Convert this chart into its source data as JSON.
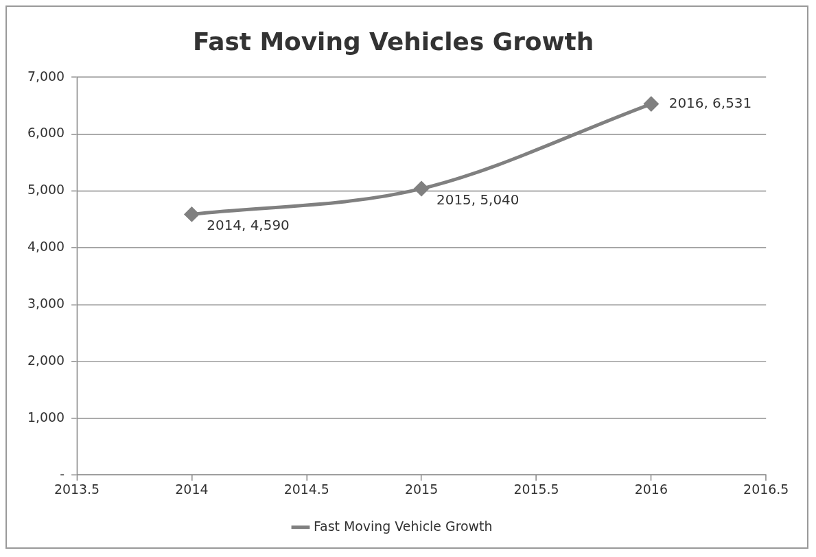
{
  "chart_data": {
    "type": "line",
    "title": "Fast Moving Vehicles Growth",
    "x": [
      2014,
      2015,
      2016
    ],
    "series": [
      {
        "name": "Fast Moving Vehicle Growth",
        "color": "#808080",
        "values": [
          4590,
          5040,
          6531
        ],
        "value_labels": [
          "2014, 4,590",
          "2015, 5,040",
          "2016, 6,531"
        ]
      }
    ],
    "xlim": [
      2013.5,
      2016.5
    ],
    "xticks": [
      2013.5,
      2014,
      2014.5,
      2015,
      2015.5,
      2016,
      2016.5
    ],
    "ylim": [
      0,
      7000
    ],
    "yticks": [
      {
        "value": 0,
        "label": "-"
      },
      {
        "value": 1000,
        "label": "1,000"
      },
      {
        "value": 2000,
        "label": "2,000"
      },
      {
        "value": 3000,
        "label": "3,000"
      },
      {
        "value": 4000,
        "label": "4,000"
      },
      {
        "value": 5000,
        "label": "5,000"
      },
      {
        "value": 6000,
        "label": "6,000"
      },
      {
        "value": 7000,
        "label": "7,000"
      }
    ],
    "grid": "y",
    "legend": "bottom",
    "marker": "diamond",
    "line_style": "solid"
  }
}
